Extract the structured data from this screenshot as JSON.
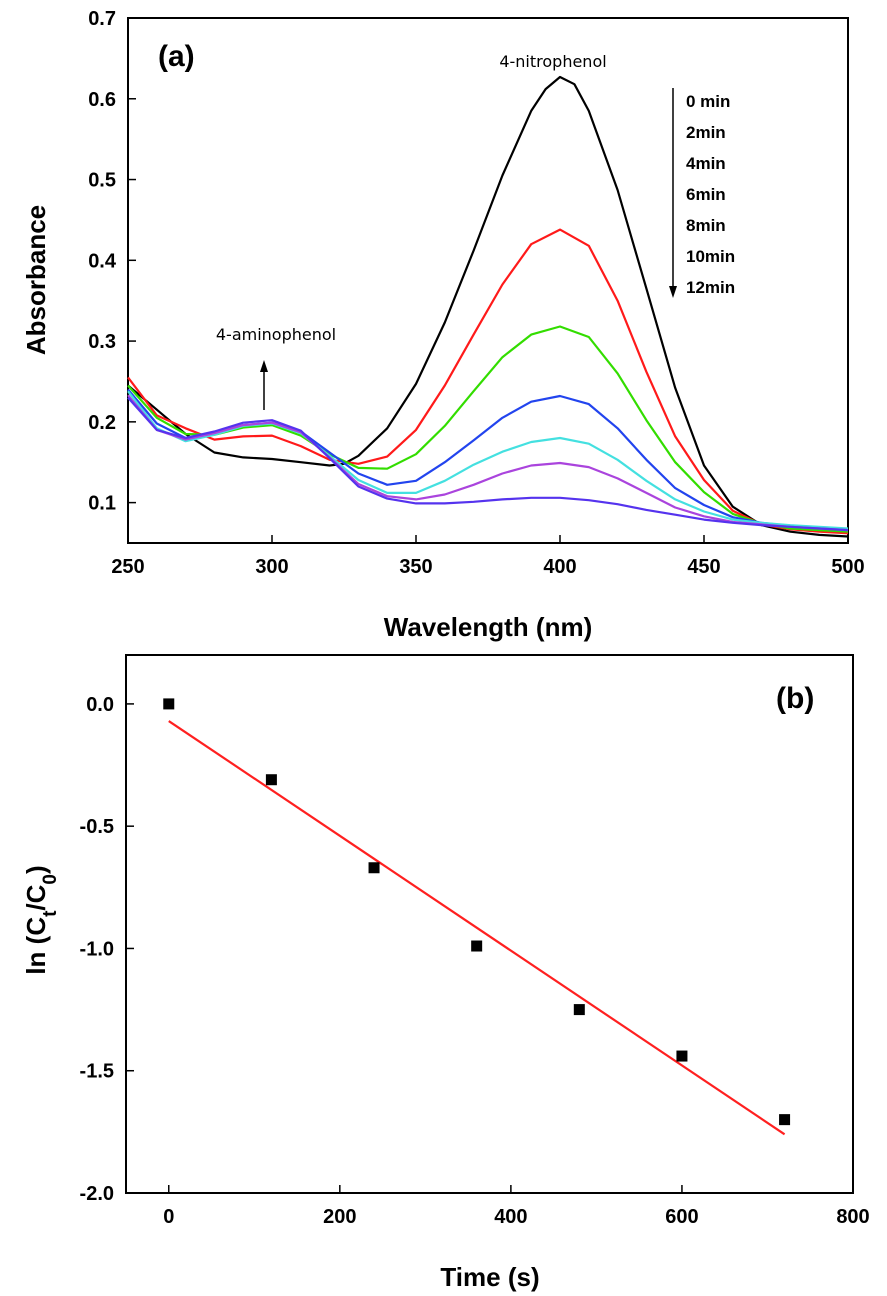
{
  "chart_data": [
    {
      "type": "line",
      "panel_label": "(a)",
      "xlabel": "Wavelength (nm)",
      "ylabel": "Absorbance",
      "xlim": [
        250,
        500
      ],
      "ylim": [
        0.05,
        0.7
      ],
      "xticks": [
        250,
        300,
        350,
        400,
        450,
        500
      ],
      "yticks": [
        0.1,
        0.2,
        0.3,
        0.4,
        0.5,
        0.6,
        0.7
      ],
      "ytick_labels": [
        "0.1",
        "0.2",
        "0.3",
        "0.4",
        "0.5",
        "0.6",
        "0.7"
      ],
      "grid": false,
      "annotations": [
        {
          "text": "4-nitrophenol",
          "x": 400,
          "y": 0.64
        },
        {
          "text": "4-aminophenol",
          "x": 297,
          "y": 0.31
        }
      ],
      "legend": {
        "placement": "top-right",
        "entries": [
          "0 min",
          "2min",
          "4min",
          "6min",
          "8min",
          "10min",
          "12min"
        ]
      },
      "series": [
        {
          "name": "0 min",
          "color": "#000000",
          "points": [
            [
              250,
              0.245
            ],
            [
              260,
              0.215
            ],
            [
              270,
              0.185
            ],
            [
              280,
              0.162
            ],
            [
              290,
              0.156
            ],
            [
              300,
              0.154
            ],
            [
              310,
              0.15
            ],
            [
              320,
              0.146
            ],
            [
              325,
              0.148
            ],
            [
              330,
              0.158
            ],
            [
              340,
              0.192
            ],
            [
              350,
              0.247
            ],
            [
              360,
              0.323
            ],
            [
              370,
              0.412
            ],
            [
              380,
              0.505
            ],
            [
              390,
              0.585
            ],
            [
              395,
              0.612
            ],
            [
              400,
              0.627
            ],
            [
              405,
              0.618
            ],
            [
              410,
              0.585
            ],
            [
              420,
              0.487
            ],
            [
              430,
              0.365
            ],
            [
              440,
              0.242
            ],
            [
              450,
              0.146
            ],
            [
              460,
              0.095
            ],
            [
              470,
              0.072
            ],
            [
              480,
              0.064
            ],
            [
              490,
              0.06
            ],
            [
              500,
              0.058
            ]
          ]
        },
        {
          "name": "2min",
          "color": "#ff1a1a",
          "points": [
            [
              250,
              0.255
            ],
            [
              260,
              0.208
            ],
            [
              270,
              0.192
            ],
            [
              280,
              0.178
            ],
            [
              290,
              0.182
            ],
            [
              300,
              0.183
            ],
            [
              310,
              0.17
            ],
            [
              320,
              0.153
            ],
            [
              330,
              0.148
            ],
            [
              340,
              0.157
            ],
            [
              350,
              0.19
            ],
            [
              360,
              0.245
            ],
            [
              370,
              0.308
            ],
            [
              380,
              0.37
            ],
            [
              390,
              0.42
            ],
            [
              400,
              0.438
            ],
            [
              410,
              0.418
            ],
            [
              420,
              0.35
            ],
            [
              430,
              0.262
            ],
            [
              440,
              0.182
            ],
            [
              450,
              0.128
            ],
            [
              460,
              0.09
            ],
            [
              470,
              0.073
            ],
            [
              480,
              0.067
            ],
            [
              490,
              0.064
            ],
            [
              500,
              0.062
            ]
          ]
        },
        {
          "name": "4min",
          "color": "#33dd00",
          "points": [
            [
              250,
              0.245
            ],
            [
              260,
              0.205
            ],
            [
              270,
              0.185
            ],
            [
              280,
              0.184
            ],
            [
              290,
              0.193
            ],
            [
              300,
              0.196
            ],
            [
              310,
              0.183
            ],
            [
              320,
              0.16
            ],
            [
              330,
              0.143
            ],
            [
              340,
              0.142
            ],
            [
              350,
              0.16
            ],
            [
              360,
              0.195
            ],
            [
              370,
              0.238
            ],
            [
              380,
              0.28
            ],
            [
              390,
              0.308
            ],
            [
              400,
              0.318
            ],
            [
              410,
              0.305
            ],
            [
              420,
              0.26
            ],
            [
              430,
              0.202
            ],
            [
              440,
              0.15
            ],
            [
              450,
              0.113
            ],
            [
              460,
              0.086
            ],
            [
              470,
              0.074
            ],
            [
              480,
              0.068
            ],
            [
              490,
              0.066
            ],
            [
              500,
              0.064
            ]
          ]
        },
        {
          "name": "6min",
          "color": "#2244ee",
          "points": [
            [
              250,
              0.24
            ],
            [
              260,
              0.198
            ],
            [
              270,
              0.18
            ],
            [
              280,
              0.186
            ],
            [
              290,
              0.196
            ],
            [
              300,
              0.199
            ],
            [
              310,
              0.188
            ],
            [
              320,
              0.162
            ],
            [
              330,
              0.136
            ],
            [
              340,
              0.122
            ],
            [
              350,
              0.127
            ],
            [
              360,
              0.15
            ],
            [
              370,
              0.177
            ],
            [
              380,
              0.205
            ],
            [
              390,
              0.225
            ],
            [
              400,
              0.232
            ],
            [
              410,
              0.222
            ],
            [
              420,
              0.192
            ],
            [
              430,
              0.153
            ],
            [
              440,
              0.118
            ],
            [
              450,
              0.097
            ],
            [
              460,
              0.082
            ],
            [
              470,
              0.075
            ],
            [
              480,
              0.071
            ],
            [
              490,
              0.069
            ],
            [
              500,
              0.067
            ]
          ]
        },
        {
          "name": "8min",
          "color": "#44e0e0",
          "points": [
            [
              250,
              0.238
            ],
            [
              260,
              0.192
            ],
            [
              270,
              0.176
            ],
            [
              280,
              0.184
            ],
            [
              290,
              0.195
            ],
            [
              300,
              0.198
            ],
            [
              310,
              0.186
            ],
            [
              320,
              0.158
            ],
            [
              330,
              0.128
            ],
            [
              340,
              0.112
            ],
            [
              350,
              0.112
            ],
            [
              360,
              0.127
            ],
            [
              370,
              0.147
            ],
            [
              380,
              0.163
            ],
            [
              390,
              0.175
            ],
            [
              400,
              0.18
            ],
            [
              410,
              0.173
            ],
            [
              420,
              0.153
            ],
            [
              430,
              0.127
            ],
            [
              440,
              0.104
            ],
            [
              450,
              0.089
            ],
            [
              460,
              0.079
            ],
            [
              470,
              0.075
            ],
            [
              480,
              0.072
            ],
            [
              490,
              0.07
            ],
            [
              500,
              0.068
            ]
          ]
        },
        {
          "name": "10min",
          "color": "#aa44dd",
          "points": [
            [
              250,
              0.233
            ],
            [
              260,
              0.19
            ],
            [
              270,
              0.178
            ],
            [
              280,
              0.186
            ],
            [
              290,
              0.196
            ],
            [
              300,
              0.199
            ],
            [
              310,
              0.187
            ],
            [
              320,
              0.156
            ],
            [
              330,
              0.123
            ],
            [
              340,
              0.108
            ],
            [
              350,
              0.104
            ],
            [
              360,
              0.11
            ],
            [
              370,
              0.122
            ],
            [
              380,
              0.136
            ],
            [
              390,
              0.146
            ],
            [
              400,
              0.149
            ],
            [
              410,
              0.144
            ],
            [
              420,
              0.13
            ],
            [
              430,
              0.112
            ],
            [
              440,
              0.094
            ],
            [
              450,
              0.083
            ],
            [
              460,
              0.076
            ],
            [
              470,
              0.073
            ],
            [
              480,
              0.07
            ],
            [
              490,
              0.068
            ],
            [
              500,
              0.066
            ]
          ]
        },
        {
          "name": "12min",
          "color": "#5533ee",
          "points": [
            [
              250,
              0.23
            ],
            [
              260,
              0.19
            ],
            [
              270,
              0.18
            ],
            [
              280,
              0.188
            ],
            [
              290,
              0.199
            ],
            [
              300,
              0.202
            ],
            [
              310,
              0.189
            ],
            [
              320,
              0.155
            ],
            [
              330,
              0.12
            ],
            [
              340,
              0.105
            ],
            [
              350,
              0.099
            ],
            [
              360,
              0.099
            ],
            [
              370,
              0.101
            ],
            [
              380,
              0.104
            ],
            [
              390,
              0.106
            ],
            [
              400,
              0.106
            ],
            [
              410,
              0.103
            ],
            [
              420,
              0.098
            ],
            [
              430,
              0.091
            ],
            [
              440,
              0.085
            ],
            [
              450,
              0.079
            ],
            [
              460,
              0.075
            ],
            [
              470,
              0.072
            ],
            [
              480,
              0.07
            ],
            [
              490,
              0.068
            ],
            [
              500,
              0.066
            ]
          ]
        }
      ]
    },
    {
      "type": "scatter",
      "panel_label": "(b)",
      "xlabel": "Time (s)",
      "ylabel_main": "ln (C",
      "ylabel_sub1": "t",
      "ylabel_mid": "/C",
      "ylabel_sub2": "0",
      "ylabel_end": ")",
      "xlim": [
        -50,
        800
      ],
      "ylim": [
        -2.0,
        0.2
      ],
      "xticks": [
        0,
        200,
        400,
        600,
        800
      ],
      "yticks": [
        0.0,
        -0.5,
        -1.0,
        -1.5,
        -2.0
      ],
      "ytick_labels": [
        "0.0",
        "-0.5",
        "-1.0",
        "-1.5",
        "-2.0"
      ],
      "grid": false,
      "points": {
        "x": [
          0,
          120,
          240,
          360,
          480,
          600,
          720
        ],
        "y": [
          0.0,
          -0.31,
          -0.67,
          -0.99,
          -1.25,
          -1.44,
          -1.7
        ]
      },
      "fit_line": {
        "color": "#ff2020",
        "x": [
          0,
          720
        ],
        "y": [
          -0.07,
          -1.76
        ]
      },
      "marker_color": "#000000"
    }
  ]
}
